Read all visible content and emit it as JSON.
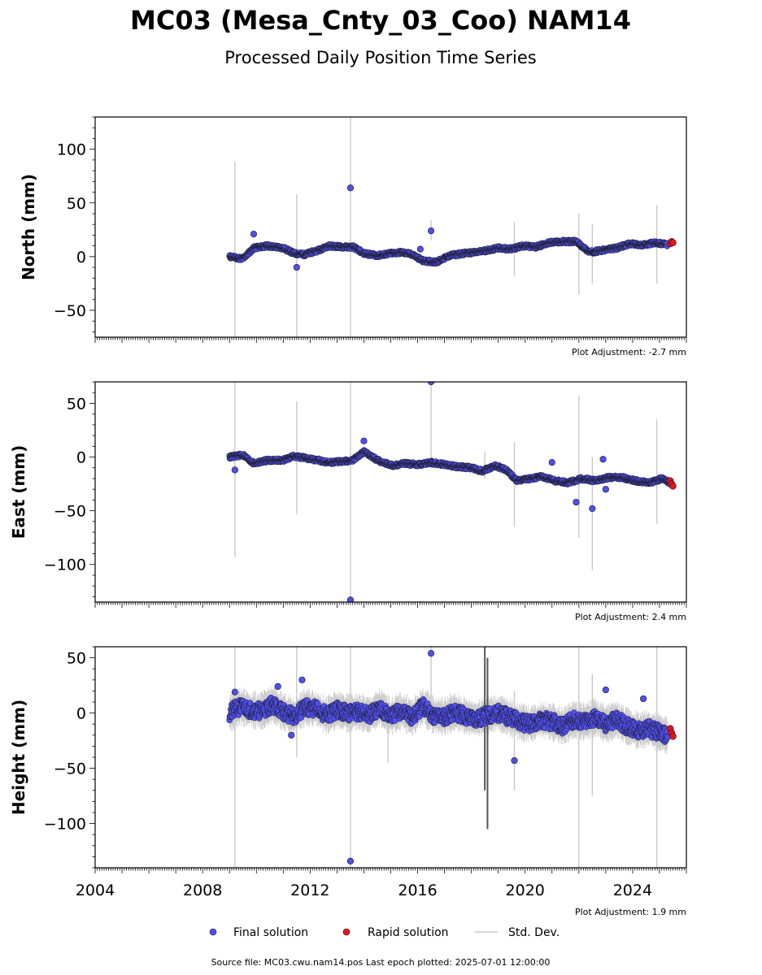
{
  "header": {
    "title": "MC03 (Mesa_Cnty_03_Coo) NAM14",
    "subtitle": "Processed Daily Position Time Series"
  },
  "footer": {
    "source": "Source file: MC03.cwu.nam14.pos  Last epoch plotted: 2025-07-01 12:00:00"
  },
  "legend": {
    "final_label": "Final solution",
    "rapid_label": "Rapid solution",
    "std_label": "Std. Dev."
  },
  "colors": {
    "final": "#4f4ff0",
    "rapid": "#e8141a",
    "std": "#c8c8c8",
    "marker_edge": "#1a1a1a"
  },
  "chart_data": [
    {
      "type": "scatter",
      "ylabel": "North (mm)",
      "adjustment": "Plot Adjustment: -2.7 mm",
      "xlim": [
        2004,
        2026
      ],
      "ylim": [
        -75,
        130
      ],
      "yticks": [
        -50,
        0,
        50,
        100
      ],
      "series": [
        {
          "name": "Final solution",
          "x": [
            2009.0,
            2009.5,
            2009.9,
            2010.4,
            2011.0,
            2011.4,
            2011.8,
            2012.3,
            2012.7,
            2013.2,
            2013.6,
            2014.0,
            2014.5,
            2015.0,
            2015.4,
            2015.8,
            2016.2,
            2016.7,
            2017.2,
            2017.7,
            2018.2,
            2018.6,
            2019.0,
            2019.5,
            2019.9,
            2020.4,
            2020.9,
            2021.4,
            2021.9,
            2022.4,
            2022.9,
            2023.4,
            2023.9,
            2024.4,
            2024.9,
            2025.3
          ],
          "y": [
            0,
            -2,
            8,
            10,
            8,
            3,
            2,
            6,
            10,
            9,
            9,
            3,
            1,
            3,
            4,
            2,
            -4,
            -5,
            1,
            3,
            4,
            6,
            8,
            7,
            10,
            9,
            13,
            14,
            14,
            4,
            6,
            8,
            12,
            11,
            13,
            11
          ]
        },
        {
          "name": "Rapid solution",
          "x": [
            2025.4,
            2025.45,
            2025.5
          ],
          "y": [
            12,
            14,
            13
          ]
        }
      ],
      "outliers": {
        "x": [
          2009.9,
          2011.5,
          2013.5,
          2016.5,
          2016.1
        ],
        "y": [
          21,
          -10,
          64,
          24,
          7
        ]
      },
      "std_spikes": {
        "x": [
          2009.2,
          2011.5,
          2013.5,
          2016.5,
          2019.6,
          2022.0,
          2022.5,
          2024.9
        ],
        "low": [
          -75,
          -75,
          -75,
          15,
          -18,
          -35,
          -25,
          -25
        ],
        "high": [
          88,
          58,
          130,
          34,
          32,
          40,
          30,
          48
        ]
      }
    },
    {
      "type": "scatter",
      "ylabel": "East (mm)",
      "adjustment": "Plot Adjustment: 2.4 mm",
      "xlim": [
        2004,
        2026
      ],
      "ylim": [
        -135,
        70
      ],
      "yticks": [
        -100,
        -50,
        0,
        50
      ],
      "series": [
        {
          "name": "Final solution",
          "x": [
            2009.0,
            2009.5,
            2009.9,
            2010.4,
            2011.0,
            2011.4,
            2011.8,
            2012.3,
            2012.7,
            2013.2,
            2013.6,
            2014.0,
            2014.3,
            2014.7,
            2015.1,
            2015.5,
            2016.0,
            2016.5,
            2017.0,
            2017.5,
            2018.0,
            2018.4,
            2018.9,
            2019.3,
            2019.7,
            2020.2,
            2020.6,
            2021.1,
            2021.6,
            2022.1,
            2022.6,
            2023.1,
            2023.6,
            2024.1,
            2024.6,
            2025.1,
            2025.4
          ],
          "y": [
            0,
            2,
            -6,
            -3,
            -3,
            1,
            -1,
            -3,
            -5,
            -4,
            -3,
            5,
            0,
            -5,
            -8,
            -6,
            -7,
            -5,
            -7,
            -9,
            -10,
            -13,
            -8,
            -12,
            -22,
            -20,
            -18,
            -22,
            -24,
            -20,
            -22,
            -19,
            -19,
            -22,
            -24,
            -20,
            -24
          ]
        },
        {
          "name": "Rapid solution",
          "x": [
            2025.4,
            2025.45,
            2025.5
          ],
          "y": [
            -22,
            -25,
            -27
          ]
        }
      ],
      "outliers": {
        "x": [
          2009.2,
          2014.0,
          2016.5,
          2013.5,
          2021.9,
          2022.5,
          2022.9,
          2021.0,
          2023.0
        ],
        "y": [
          -12,
          15,
          70,
          -133,
          -42,
          -48,
          -2,
          -5,
          -30
        ]
      },
      "std_spikes": {
        "x": [
          2009.2,
          2011.5,
          2013.5,
          2016.5,
          2018.5,
          2019.6,
          2022.0,
          2022.5,
          2024.9
        ],
        "low": [
          -93,
          -53,
          -135,
          -10,
          -20,
          -65,
          -75,
          -105,
          -62
        ],
        "high": [
          70,
          52,
          70,
          70,
          5,
          14,
          57,
          0,
          35
        ]
      }
    },
    {
      "type": "scatter",
      "ylabel": "Height (mm)",
      "adjustment": "Plot Adjustment: 1.9 mm",
      "xlim": [
        2004,
        2026
      ],
      "ylim": [
        -140,
        60
      ],
      "yticks": [
        -100,
        -50,
        0,
        50
      ],
      "xticks": [
        2004,
        2008,
        2012,
        2016,
        2020,
        2024
      ],
      "series": [
        {
          "name": "Final solution",
          "x": [
            2009.0,
            2009.4,
            2009.8,
            2010.2,
            2010.6,
            2011.0,
            2011.4,
            2011.8,
            2012.2,
            2012.6,
            2013.0,
            2013.4,
            2013.8,
            2014.2,
            2014.6,
            2015.0,
            2015.4,
            2015.8,
            2016.2,
            2016.6,
            2017.0,
            2017.4,
            2017.8,
            2018.2,
            2018.6,
            2019.0,
            2019.4,
            2019.8,
            2020.2,
            2020.6,
            2021.0,
            2021.4,
            2021.8,
            2022.2,
            2022.6,
            2023.0,
            2023.4,
            2023.8,
            2024.2,
            2024.6,
            2025.0,
            2025.3
          ],
          "y": [
            0,
            6,
            3,
            2,
            8,
            1,
            -3,
            5,
            4,
            -2,
            3,
            0,
            1,
            -2,
            5,
            -3,
            2,
            -4,
            6,
            -2,
            -3,
            1,
            -3,
            -5,
            -2,
            0,
            -4,
            -8,
            -10,
            -6,
            -8,
            -12,
            -6,
            -8,
            -4,
            -10,
            -6,
            -12,
            -16,
            -14,
            -18,
            -20
          ]
        },
        {
          "name": "Rapid solution",
          "x": [
            2025.4,
            2025.45,
            2025.5
          ],
          "y": [
            -14,
            -18,
            -21
          ]
        }
      ],
      "outliers": {
        "x": [
          2009.2,
          2011.7,
          2013.5,
          2016.5,
          2019.6,
          2023.0,
          2024.4,
          2010.8,
          2011.3
        ],
        "y": [
          19,
          30,
          -134,
          54,
          -43,
          21,
          13,
          24,
          -20
        ]
      },
      "std_spikes": {
        "x": [
          2009.2,
          2011.5,
          2013.5,
          2014.9,
          2016.5,
          2018.5,
          2018.6,
          2019.6,
          2022.0,
          2022.5,
          2024.9
        ],
        "low": [
          -140,
          -40,
          -140,
          -45,
          -10,
          -70,
          -105,
          -70,
          -140,
          -75,
          -140
        ],
        "high": [
          60,
          60,
          60,
          10,
          60,
          60,
          50,
          20,
          60,
          35,
          60
        ]
      }
    }
  ]
}
